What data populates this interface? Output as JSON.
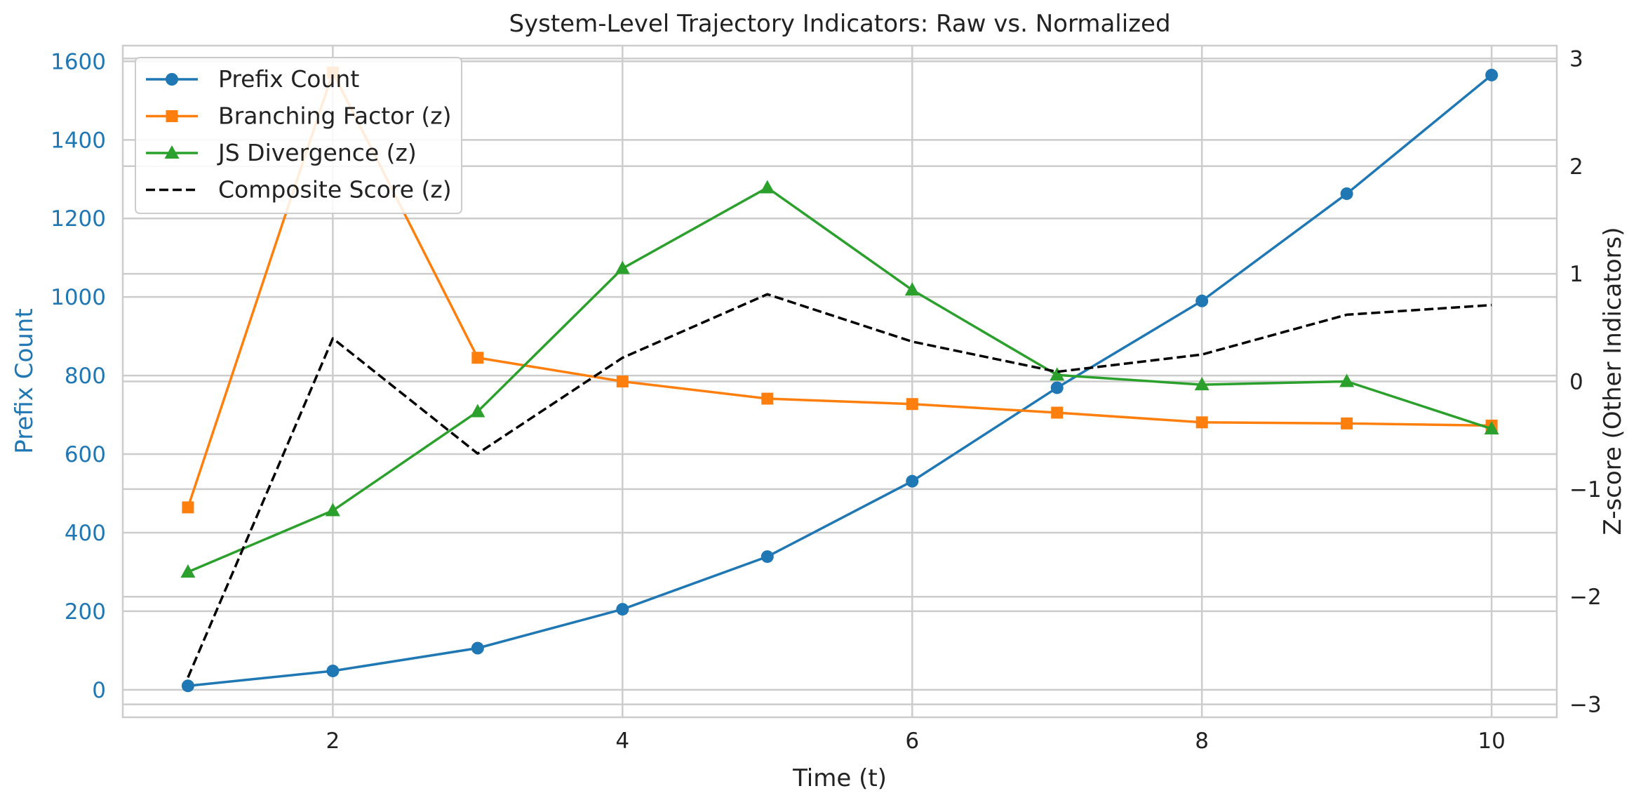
{
  "chart_data": {
    "type": "line",
    "title": "System-Level Trajectory Indicators: Raw vs. Normalized",
    "xlabel": "Time (t)",
    "ylabel_left": "Prefix Count",
    "ylabel_right": "Z-score (Other Indicators)",
    "x": [
      1,
      2,
      3,
      4,
      5,
      6,
      7,
      8,
      9,
      10
    ],
    "xlim": [
      0.55,
      10.45
    ],
    "xticks": [
      2,
      4,
      6,
      8,
      10
    ],
    "ylim_left": [
      -70,
      1640
    ],
    "yticks_left": [
      0,
      200,
      400,
      600,
      800,
      1000,
      1200,
      1400,
      1600
    ],
    "ylim_right": [
      -3.12,
      3.12
    ],
    "yticks_right": [
      -3,
      -2,
      -1,
      0,
      1,
      2,
      3
    ],
    "ytick_labels_right": [
      "−3",
      "−2",
      "−1",
      "0",
      "1",
      "2",
      "3"
    ],
    "grid": true,
    "legend_position": "top-left",
    "colors": {
      "prefix": "#1f77b4",
      "branching": "#ff7f0e",
      "js": "#2ca02c",
      "composite": "#000000",
      "grid": "#cccccc",
      "text": "#222222"
    },
    "series": [
      {
        "name": "Prefix Count",
        "axis": "left",
        "marker": "circle",
        "style": "solid",
        "values": [
          10,
          48,
          106,
          205,
          339,
          531,
          769,
          990,
          1263,
          1565
        ]
      },
      {
        "name": "Branching Factor (z)",
        "axis": "right",
        "marker": "square",
        "style": "solid",
        "values": [
          -1.17,
          2.87,
          0.22,
          0.0,
          -0.16,
          -0.21,
          -0.29,
          -0.38,
          -0.39,
          -0.41
        ]
      },
      {
        "name": "JS Divergence (z)",
        "axis": "right",
        "marker": "triangle",
        "style": "solid",
        "values": [
          -1.77,
          -1.2,
          -0.28,
          1.05,
          1.8,
          0.85,
          0.06,
          -0.03,
          0.0,
          -0.44
        ]
      },
      {
        "name": "Composite Score (z)",
        "axis": "right",
        "marker": "none",
        "style": "dashed",
        "values": [
          -2.75,
          0.4,
          -0.67,
          0.22,
          0.81,
          0.37,
          0.09,
          0.25,
          0.62,
          0.71
        ]
      }
    ]
  }
}
